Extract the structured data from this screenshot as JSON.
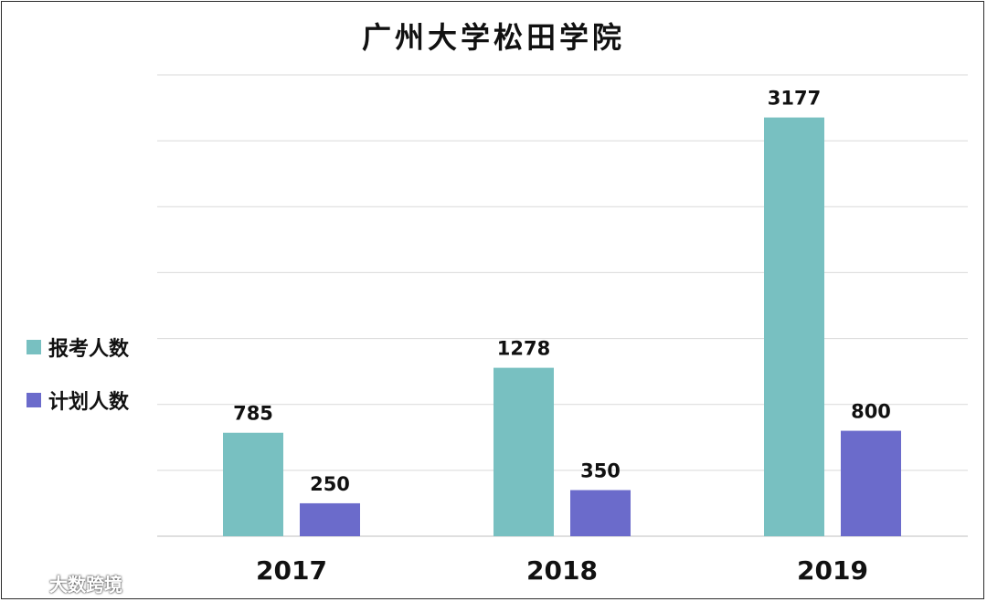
{
  "chart_data": {
    "type": "bar",
    "title": "广州大学松田学院",
    "categories": [
      "2017",
      "2018",
      "2019"
    ],
    "series": [
      {
        "name": "报考人数",
        "values": [
          785,
          1278,
          3177
        ],
        "color": "#78C0C1"
      },
      {
        "name": "计划人数",
        "values": [
          250,
          350,
          800
        ],
        "color": "#6B6BCB"
      }
    ],
    "ylim": [
      0,
      3500
    ],
    "grid": true,
    "legend_position": "left"
  },
  "watermark": {
    "text": "大数跨境"
  }
}
